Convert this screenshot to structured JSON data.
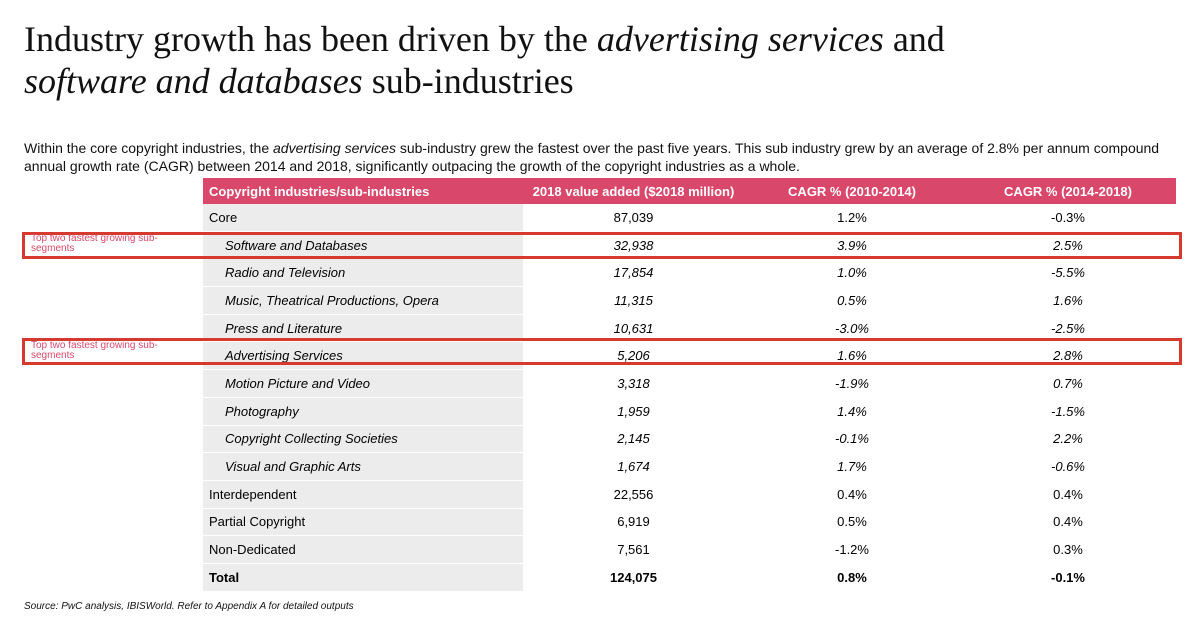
{
  "title": {
    "part1": "Industry growth has been driven by the ",
    "em1": "advertising services",
    "part2": " and ",
    "em2": "software and databases",
    "part3": " sub-industries"
  },
  "intro": {
    "part1": "Within the core copyright industries, the ",
    "em": "advertising services",
    "part2": " sub-industry grew the fastest over the past five years. This sub industry grew by an average of 2.8% per annum compound annual growth rate (CAGR) between 2014 and 2018, significantly outpacing the growth of the copyright industries as a whole."
  },
  "table": {
    "headers": [
      "Copyright industries/sub-industries",
      "2018 value added ($2018 million)",
      "CAGR % (2010-2014)",
      "CAGR % (2014-2018)"
    ],
    "rows": [
      [
        "Core",
        "87,039",
        "1.2%",
        "-0.3%"
      ],
      [
        "Software and Databases",
        "32,938",
        "3.9%",
        "2.5%"
      ],
      [
        "Radio and Television",
        "17,854",
        "1.0%",
        "-5.5%"
      ],
      [
        "Music, Theatrical Productions, Opera",
        "11,315",
        "0.5%",
        "1.6%"
      ],
      [
        "Press and Literature",
        "10,631",
        "-3.0%",
        "-2.5%"
      ],
      [
        "Advertising Services",
        "5,206",
        "1.6%",
        "2.8%"
      ],
      [
        "Motion Picture and Video",
        "3,318",
        "-1.9%",
        "0.7%"
      ],
      [
        "Photography",
        "1,959",
        "1.4%",
        "-1.5%"
      ],
      [
        "Copyright Collecting Societies",
        "2,145",
        "-0.1%",
        "2.2%"
      ],
      [
        "Visual and Graphic Arts",
        "1,674",
        "1.7%",
        "-0.6%"
      ],
      [
        "Interdependent",
        "22,556",
        "0.4%",
        "0.4%"
      ],
      [
        "Partial Copyright",
        "6,919",
        "0.5%",
        "0.4%"
      ],
      [
        "Non-Dedicated",
        "7,561",
        "-1.2%",
        "0.3%"
      ],
      [
        "Total",
        "124,075",
        "0.8%",
        "-0.1%"
      ]
    ]
  },
  "highlight_label": "Top two fastest growing sub-segments",
  "highlight_color": "#d63a2e",
  "header_color": "#d9486a",
  "source": "Source: PwC analysis, IBISWorld. Refer to Appendix A for detailed outputs"
}
